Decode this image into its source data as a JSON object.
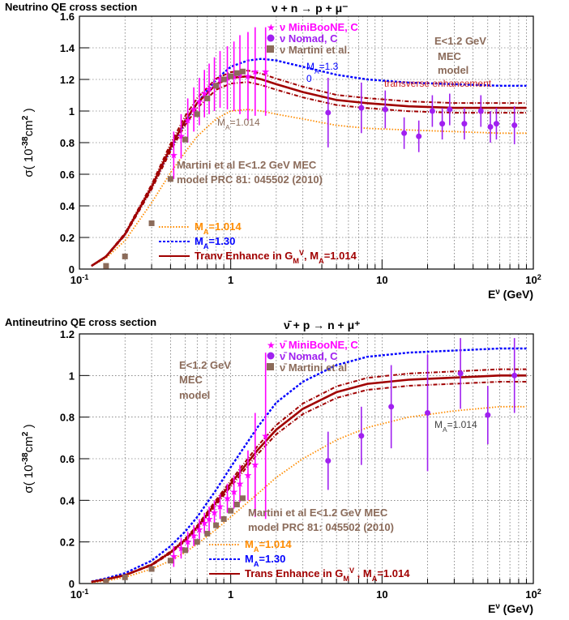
{
  "chart_data": [
    {
      "type": "scatter",
      "title": "Neutrino QE cross section",
      "reaction": "ν + n → p + μ⁻",
      "xlabel": "E^ν (GeV)",
      "ylabel": "σ( 10^-38 cm^2 )",
      "x_scale": "log",
      "xlim": [
        0.1,
        100
      ],
      "ylim": [
        0,
        1.6
      ],
      "yticks": [
        0,
        0.2,
        0.4,
        0.6,
        0.8,
        1,
        1.2,
        1.4,
        1.6
      ],
      "xtick_labels": [
        "10^-1",
        "1",
        "10",
        "10^2"
      ],
      "grid": true,
      "legend_top": [
        {
          "label": "ν MiniBooNE, C",
          "color": "#ff00ff",
          "marker": "star"
        },
        {
          "label": "ν Nomad, C",
          "color": "#a020f0",
          "marker": "circle"
        },
        {
          "label": "ν Martini et al.",
          "color": "#8b6b5a",
          "marker": "square"
        }
      ],
      "legend_bottom": [
        {
          "label": "MA=1.014",
          "color": "#ff8c00",
          "style": "dotted"
        },
        {
          "label": "MA=1.30",
          "color": "#0000ff",
          "style": "dashed"
        },
        {
          "label": "Tranv Enhance in GM^V, MA=1.014",
          "color": "#a00000",
          "style": "solid"
        }
      ],
      "annotations": [
        "E<1.2 GeV",
        "MEC",
        "model",
        "MA=1.3",
        "0",
        "transverse enhancement",
        "MA=1.014",
        "Martini et al E<1.2 GeV MEC",
        "model PRC 81: 045502 (2010)"
      ],
      "series": [
        {
          "name": "MA=1.014",
          "style": "dotted",
          "color": "#ff8c00",
          "x": [
            0.12,
            0.15,
            0.2,
            0.3,
            0.4,
            0.5,
            0.6,
            0.8,
            1.0,
            1.3,
            1.6,
            2,
            3,
            5,
            8,
            15,
            30,
            60,
            90
          ],
          "y": [
            0.02,
            0.07,
            0.18,
            0.42,
            0.61,
            0.74,
            0.84,
            0.95,
            1.0,
            1.01,
            1.0,
            0.98,
            0.95,
            0.91,
            0.89,
            0.88,
            0.87,
            0.86,
            0.86
          ]
        },
        {
          "name": "MA=1.30",
          "style": "dashed",
          "color": "#0000ff",
          "x": [
            0.12,
            0.15,
            0.2,
            0.3,
            0.4,
            0.5,
            0.6,
            0.8,
            1.0,
            1.3,
            1.6,
            2,
            3,
            5,
            8,
            15,
            30,
            60,
            90
          ],
          "y": [
            0.02,
            0.08,
            0.22,
            0.52,
            0.76,
            0.93,
            1.05,
            1.2,
            1.28,
            1.32,
            1.33,
            1.32,
            1.28,
            1.23,
            1.2,
            1.18,
            1.17,
            1.16,
            1.16
          ]
        },
        {
          "name": "Tranv Enhance in GM^V, MA=1.014",
          "style": "solid",
          "color": "#a00000",
          "x": [
            0.12,
            0.15,
            0.2,
            0.3,
            0.4,
            0.5,
            0.6,
            0.8,
            1.0,
            1.3,
            1.6,
            2,
            3,
            5,
            8,
            15,
            30,
            60,
            90
          ],
          "y": [
            0.02,
            0.08,
            0.22,
            0.52,
            0.77,
            0.94,
            1.05,
            1.17,
            1.21,
            1.22,
            1.2,
            1.17,
            1.12,
            1.07,
            1.05,
            1.03,
            1.02,
            1.02,
            1.02
          ]
        },
        {
          "name": "ν MiniBooNE, C",
          "marker": "star",
          "color": "#ff00ff",
          "points": [
            {
              "x": 0.42,
              "y": 0.72,
              "err": 0.15
            },
            {
              "x": 0.47,
              "y": 0.84,
              "err": 0.14
            },
            {
              "x": 0.52,
              "y": 0.94,
              "err": 0.14
            },
            {
              "x": 0.57,
              "y": 1.01,
              "err": 0.14
            },
            {
              "x": 0.62,
              "y": 1.06,
              "err": 0.15
            },
            {
              "x": 0.67,
              "y": 1.11,
              "err": 0.15
            },
            {
              "x": 0.72,
              "y": 1.14,
              "err": 0.16
            },
            {
              "x": 0.78,
              "y": 1.17,
              "err": 0.17
            },
            {
              "x": 0.85,
              "y": 1.2,
              "err": 0.18
            },
            {
              "x": 0.95,
              "y": 1.21,
              "err": 0.2
            },
            {
              "x": 1.05,
              "y": 1.22,
              "err": 0.22
            },
            {
              "x": 1.15,
              "y": 1.23,
              "err": 0.25
            },
            {
              "x": 1.3,
              "y": 1.22,
              "err": 0.28
            },
            {
              "x": 1.45,
              "y": 1.25,
              "err": 0.28
            },
            {
              "x": 1.7,
              "y": 1.25,
              "err": 0.28
            }
          ]
        },
        {
          "name": "ν Nomad, C",
          "marker": "circle",
          "color": "#a020f0",
          "points": [
            {
              "x": 4.4,
              "y": 0.99,
              "err": 0.22
            },
            {
              "x": 7.3,
              "y": 1.02,
              "err": 0.16
            },
            {
              "x": 10.5,
              "y": 1.01,
              "err": 0.12
            },
            {
              "x": 14,
              "y": 0.86,
              "err": 0.1
            },
            {
              "x": 17.5,
              "y": 0.84,
              "err": 0.1
            },
            {
              "x": 21.5,
              "y": 1.0,
              "err": 0.1
            },
            {
              "x": 25,
              "y": 0.92,
              "err": 0.1
            },
            {
              "x": 28,
              "y": 1.01,
              "err": 0.1
            },
            {
              "x": 35,
              "y": 0.92,
              "err": 0.1
            },
            {
              "x": 45,
              "y": 1.0,
              "err": 0.1
            },
            {
              "x": 52,
              "y": 0.9,
              "err": 0.1
            },
            {
              "x": 57,
              "y": 0.92,
              "err": 0.1
            },
            {
              "x": 75,
              "y": 0.91,
              "err": 0.12
            }
          ]
        },
        {
          "name": "ν Martini et al.",
          "marker": "square",
          "color": "#8b6b5a",
          "points": [
            {
              "x": 0.15,
              "y": 0.02
            },
            {
              "x": 0.2,
              "y": 0.08
            },
            {
              "x": 0.3,
              "y": 0.29
            },
            {
              "x": 0.4,
              "y": 0.57
            },
            {
              "x": 0.5,
              "y": 0.82
            },
            {
              "x": 0.6,
              "y": 0.98
            },
            {
              "x": 0.7,
              "y": 1.08
            },
            {
              "x": 0.8,
              "y": 1.16
            },
            {
              "x": 0.9,
              "y": 1.2
            },
            {
              "x": 1.0,
              "y": 1.22
            },
            {
              "x": 1.1,
              "y": 1.24
            },
            {
              "x": 1.2,
              "y": 1.25
            }
          ]
        }
      ]
    },
    {
      "type": "scatter",
      "title": "Antineutrino QE cross section",
      "reaction": "ν̄ + p → n + μ⁺",
      "xlabel": "E^ν (GeV)",
      "ylabel": "σ( 10^-38 cm^2 )",
      "x_scale": "log",
      "xlim": [
        0.1,
        100
      ],
      "ylim": [
        0,
        1.2
      ],
      "yticks": [
        0,
        0.2,
        0.4,
        0.6,
        0.8,
        1,
        1.2
      ],
      "xtick_labels": [
        "10^-1",
        "1",
        "10",
        "10^2"
      ],
      "grid": true,
      "legend_top": [
        {
          "label": "ν̄ MiniBooNE, C",
          "color": "#ff00ff",
          "marker": "star"
        },
        {
          "label": "ν̄ Nomad, C",
          "color": "#a020f0",
          "marker": "circle"
        },
        {
          "label": "ν̄ Martini et al",
          "color": "#8b6b5a",
          "marker": "square"
        }
      ],
      "legend_bottom": [
        {
          "label": "MA=1.014",
          "color": "#ff8c00",
          "style": "dotted"
        },
        {
          "label": "MA=1.30",
          "color": "#0000ff",
          "style": "dashed"
        },
        {
          "label": "Trans Enhance in GM^V , MA=1.014",
          "color": "#a00000",
          "style": "solid"
        }
      ],
      "annotations": [
        "E<1.2 GeV",
        "MEC",
        "model",
        "MA=1.014",
        "Martini et al E<1.2 GeV MEC",
        "model PRC 81: 045502 (2010)"
      ],
      "series": [
        {
          "name": "MA=1.014",
          "style": "dotted",
          "color": "#ff8c00",
          "x": [
            0.12,
            0.15,
            0.2,
            0.3,
            0.4,
            0.5,
            0.6,
            0.8,
            1.0,
            1.5,
            2,
            3,
            5,
            8,
            15,
            30,
            60,
            90
          ],
          "y": [
            0.005,
            0.012,
            0.03,
            0.07,
            0.11,
            0.15,
            0.19,
            0.26,
            0.32,
            0.43,
            0.51,
            0.6,
            0.69,
            0.75,
            0.8,
            0.83,
            0.85,
            0.85
          ]
        },
        {
          "name": "MA=1.30",
          "style": "dashed",
          "color": "#0000ff",
          "x": [
            0.12,
            0.15,
            0.2,
            0.3,
            0.4,
            0.5,
            0.6,
            0.8,
            1.0,
            1.5,
            2,
            3,
            5,
            8,
            15,
            30,
            60,
            90
          ],
          "y": [
            0.01,
            0.025,
            0.05,
            0.11,
            0.18,
            0.25,
            0.32,
            0.45,
            0.56,
            0.75,
            0.87,
            0.97,
            1.05,
            1.09,
            1.11,
            1.12,
            1.13,
            1.13
          ]
        },
        {
          "name": "Trans Enhance in GM^V , MA=1.014",
          "style": "solid",
          "color": "#a00000",
          "x": [
            0.12,
            0.15,
            0.2,
            0.3,
            0.4,
            0.5,
            0.6,
            0.8,
            1.0,
            1.5,
            2,
            3,
            5,
            8,
            15,
            30,
            60,
            90
          ],
          "y": [
            0.008,
            0.02,
            0.04,
            0.09,
            0.15,
            0.21,
            0.27,
            0.39,
            0.48,
            0.64,
            0.74,
            0.84,
            0.92,
            0.96,
            0.98,
            0.99,
            1.0,
            1.0
          ]
        },
        {
          "name": "ν̄ MiniBooNE, C",
          "marker": "star",
          "color": "#ff00ff",
          "points": [
            {
              "x": 0.42,
              "y": 0.13,
              "err": 0.05
            },
            {
              "x": 0.47,
              "y": 0.17,
              "err": 0.05
            },
            {
              "x": 0.52,
              "y": 0.2,
              "err": 0.05
            },
            {
              "x": 0.57,
              "y": 0.23,
              "err": 0.05
            },
            {
              "x": 0.62,
              "y": 0.26,
              "err": 0.05
            },
            {
              "x": 0.67,
              "y": 0.29,
              "err": 0.05
            },
            {
              "x": 0.72,
              "y": 0.31,
              "err": 0.06
            },
            {
              "x": 0.78,
              "y": 0.34,
              "err": 0.06
            },
            {
              "x": 0.85,
              "y": 0.37,
              "err": 0.06
            },
            {
              "x": 0.95,
              "y": 0.41,
              "err": 0.07
            },
            {
              "x": 1.05,
              "y": 0.44,
              "err": 0.08
            },
            {
              "x": 1.15,
              "y": 0.48,
              "err": 0.09
            },
            {
              "x": 1.3,
              "y": 0.52,
              "err": 0.12
            },
            {
              "x": 1.45,
              "y": 0.57,
              "err": 0.25
            },
            {
              "x": 1.7,
              "y": 0.71,
              "err": 0.4
            }
          ]
        },
        {
          "name": "ν̄ Nomad, C",
          "marker": "circle",
          "color": "#a020f0",
          "points": [
            {
              "x": 4.4,
              "y": 0.59,
              "err": 0.14
            },
            {
              "x": 7.3,
              "y": 0.71,
              "err": 0.14
            },
            {
              "x": 11.5,
              "y": 0.85,
              "err": 0.2
            },
            {
              "x": 20,
              "y": 0.82,
              "err": 0.28
            },
            {
              "x": 33,
              "y": 1.01,
              "err": 0.17
            },
            {
              "x": 50,
              "y": 0.81,
              "err": 0.14
            },
            {
              "x": 75,
              "y": 1.0,
              "err": 0.18
            }
          ]
        },
        {
          "name": "ν̄ Martini et al",
          "marker": "square",
          "color": "#8b6b5a",
          "points": [
            {
              "x": 0.15,
              "y": 0.01
            },
            {
              "x": 0.2,
              "y": 0.03
            },
            {
              "x": 0.3,
              "y": 0.07
            },
            {
              "x": 0.4,
              "y": 0.11
            },
            {
              "x": 0.5,
              "y": 0.16
            },
            {
              "x": 0.6,
              "y": 0.2
            },
            {
              "x": 0.7,
              "y": 0.24
            },
            {
              "x": 0.8,
              "y": 0.28
            },
            {
              "x": 0.9,
              "y": 0.31
            },
            {
              "x": 1.0,
              "y": 0.35
            },
            {
              "x": 1.1,
              "y": 0.38
            },
            {
              "x": 1.2,
              "y": 0.41
            }
          ]
        }
      ]
    }
  ]
}
